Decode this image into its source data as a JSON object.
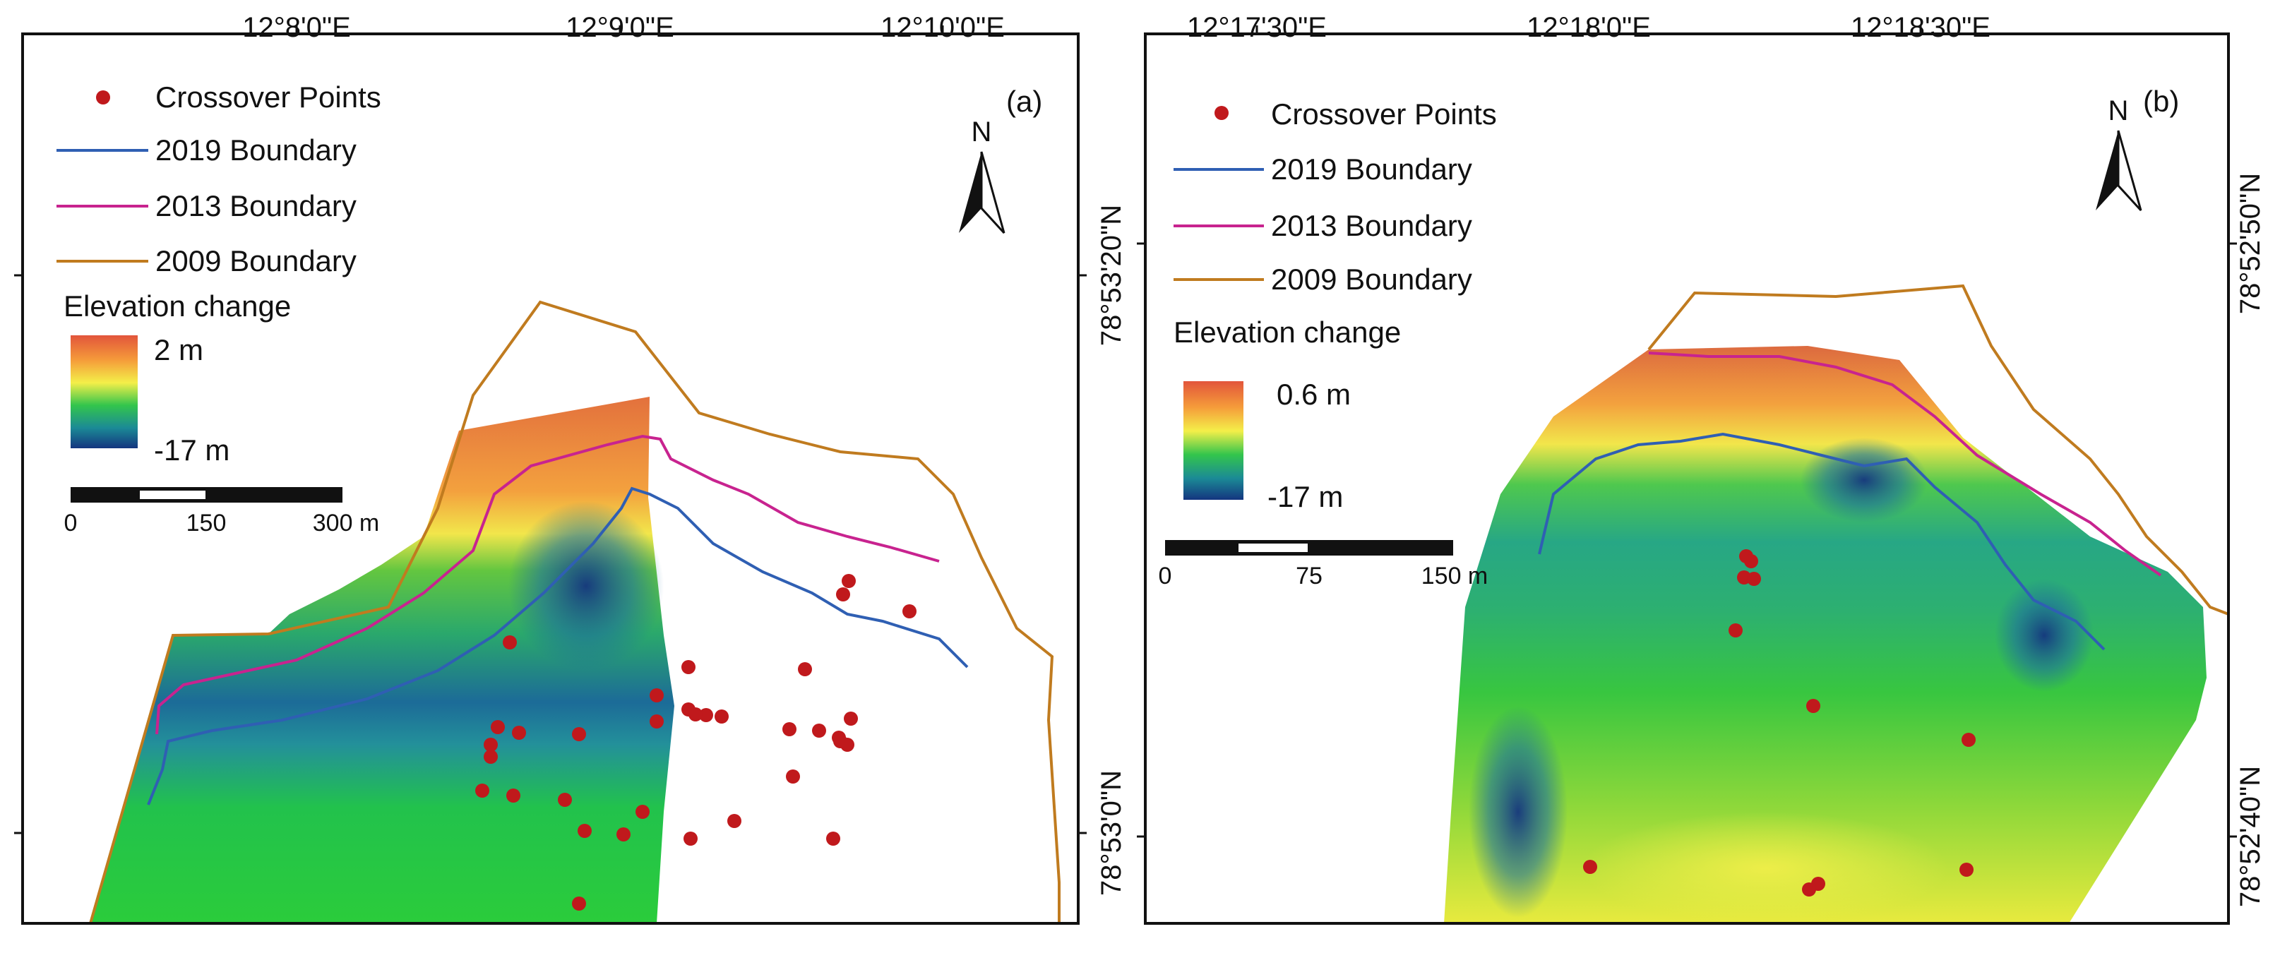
{
  "panel_a": {
    "label": "(a)",
    "top_ticks": [
      "12°8'0\"E",
      "12°9'0\"E",
      "12°10'0\"E"
    ],
    "right_ticks": [
      "78°53'20\"N",
      "78°53'0\"N"
    ],
    "north": "N",
    "legend": {
      "crossover": "Crossover Points",
      "b2019": "2019 Boundary",
      "b2013": "2013 Boundary",
      "b2009": "2009 Boundary",
      "elev_title": "Elevation change",
      "elev_max": "2 m",
      "elev_min": "-17 m"
    },
    "scale": {
      "t0": "0",
      "t1": "150",
      "t2": "300 m"
    }
  },
  "panel_b": {
    "label": "(b)",
    "top_ticks": [
      "12°17'30\"E",
      "12°18'0\"E",
      "12°18'30\"E"
    ],
    "right_ticks": [
      "78°52'50\"N",
      "78°52'40\"N"
    ],
    "north": "N",
    "legend": {
      "crossover": "Crossover Points",
      "b2019": "2019 Boundary",
      "b2013": "2013 Boundary",
      "b2009": "2009 Boundary",
      "elev_title": "Elevation change",
      "elev_max": "0.6 m",
      "elev_min": "-17 m"
    },
    "scale": {
      "t0": "0",
      "t1": "75",
      "t2": "150 m"
    }
  },
  "colors": {
    "crossover": "#c0191c",
    "b2019": "#2f5fb3",
    "b2013": "#c8238f",
    "b2009": "#c07b1f"
  }
}
